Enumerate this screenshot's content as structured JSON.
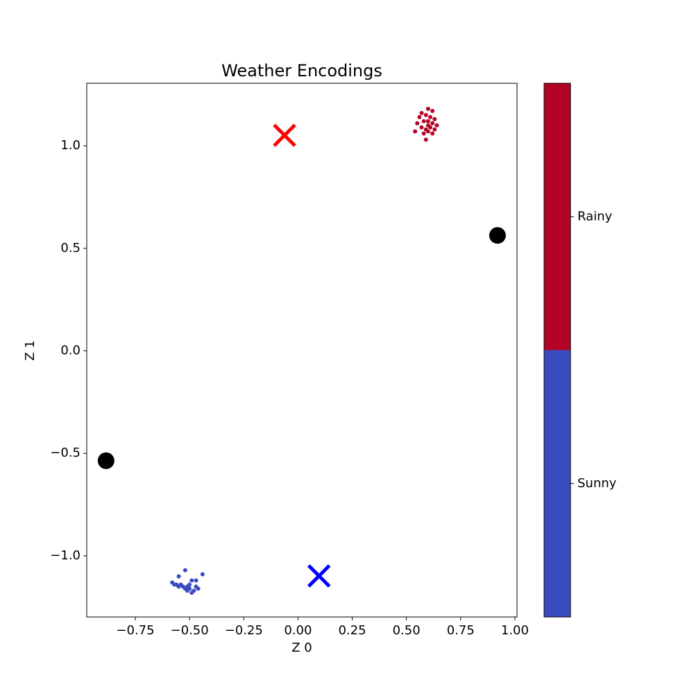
{
  "chart_data": {
    "type": "scatter",
    "title": "Weather Encodings",
    "xlabel": "Z 0",
    "ylabel": "Z 1",
    "xlim": [
      -0.974,
      1.01
    ],
    "ylim": [
      -1.298,
      1.305
    ],
    "xticks": [
      {
        "value": -0.75,
        "label": "−0.75"
      },
      {
        "value": -0.5,
        "label": "−0.50"
      },
      {
        "value": -0.25,
        "label": "−0.25"
      },
      {
        "value": 0,
        "label": "0.00"
      },
      {
        "value": 0.25,
        "label": "0.25"
      },
      {
        "value": 0.5,
        "label": "0.50"
      },
      {
        "value": 0.75,
        "label": "0.75"
      },
      {
        "value": 1,
        "label": "1.00"
      }
    ],
    "yticks": [
      {
        "value": -1,
        "label": "−1.0"
      },
      {
        "value": -0.5,
        "label": "−0.5"
      },
      {
        "value": 0,
        "label": "0.0"
      },
      {
        "value": 0.5,
        "label": "0.5"
      },
      {
        "value": 1,
        "label": "1.0"
      }
    ],
    "series": [
      {
        "name": "Sunny",
        "color": "#3b4cc0",
        "marker": "o",
        "size": 6,
        "x": [
          -0.55,
          -0.52,
          -0.44,
          -0.49,
          -0.47,
          -0.58,
          -0.56,
          -0.54,
          -0.53,
          -0.51,
          -0.5,
          -0.52,
          -0.5,
          -0.48,
          -0.49,
          -0.46,
          -0.47,
          -0.57,
          -0.55,
          -0.51
        ],
        "y": [
          -1.1,
          -1.07,
          -1.09,
          -1.12,
          -1.12,
          -1.13,
          -1.14,
          -1.14,
          -1.15,
          -1.15,
          -1.14,
          -1.16,
          -1.16,
          -1.17,
          -1.18,
          -1.16,
          -1.15,
          -1.14,
          -1.15,
          -1.17
        ]
      },
      {
        "name": "Rainy",
        "color": "#b40426",
        "marker": "o",
        "size": 6,
        "x": [
          0.6,
          0.62,
          0.57,
          0.59,
          0.61,
          0.63,
          0.58,
          0.6,
          0.62,
          0.64,
          0.55,
          0.57,
          0.59,
          0.61,
          0.63,
          0.54,
          0.58,
          0.6,
          0.62,
          0.59,
          0.56,
          0.6
        ],
        "y": [
          1.18,
          1.17,
          1.16,
          1.15,
          1.14,
          1.13,
          1.12,
          1.12,
          1.11,
          1.1,
          1.11,
          1.09,
          1.08,
          1.09,
          1.08,
          1.07,
          1.06,
          1.07,
          1.06,
          1.03,
          1.14,
          1.1
        ]
      },
      {
        "color": "#0000ff",
        "marker": "x",
        "size": 30,
        "x": [
          0.097
        ],
        "y": [
          -1.098
        ]
      },
      {
        "color": "#ff0000",
        "marker": "x",
        "size": 30,
        "x": [
          -0.062
        ],
        "y": [
          1.051
        ]
      },
      {
        "color": "#000000",
        "marker": "o",
        "size": 24,
        "x": [
          0.92,
          -0.885
        ],
        "y": [
          0.563,
          -0.536
        ]
      }
    ]
  }
}
